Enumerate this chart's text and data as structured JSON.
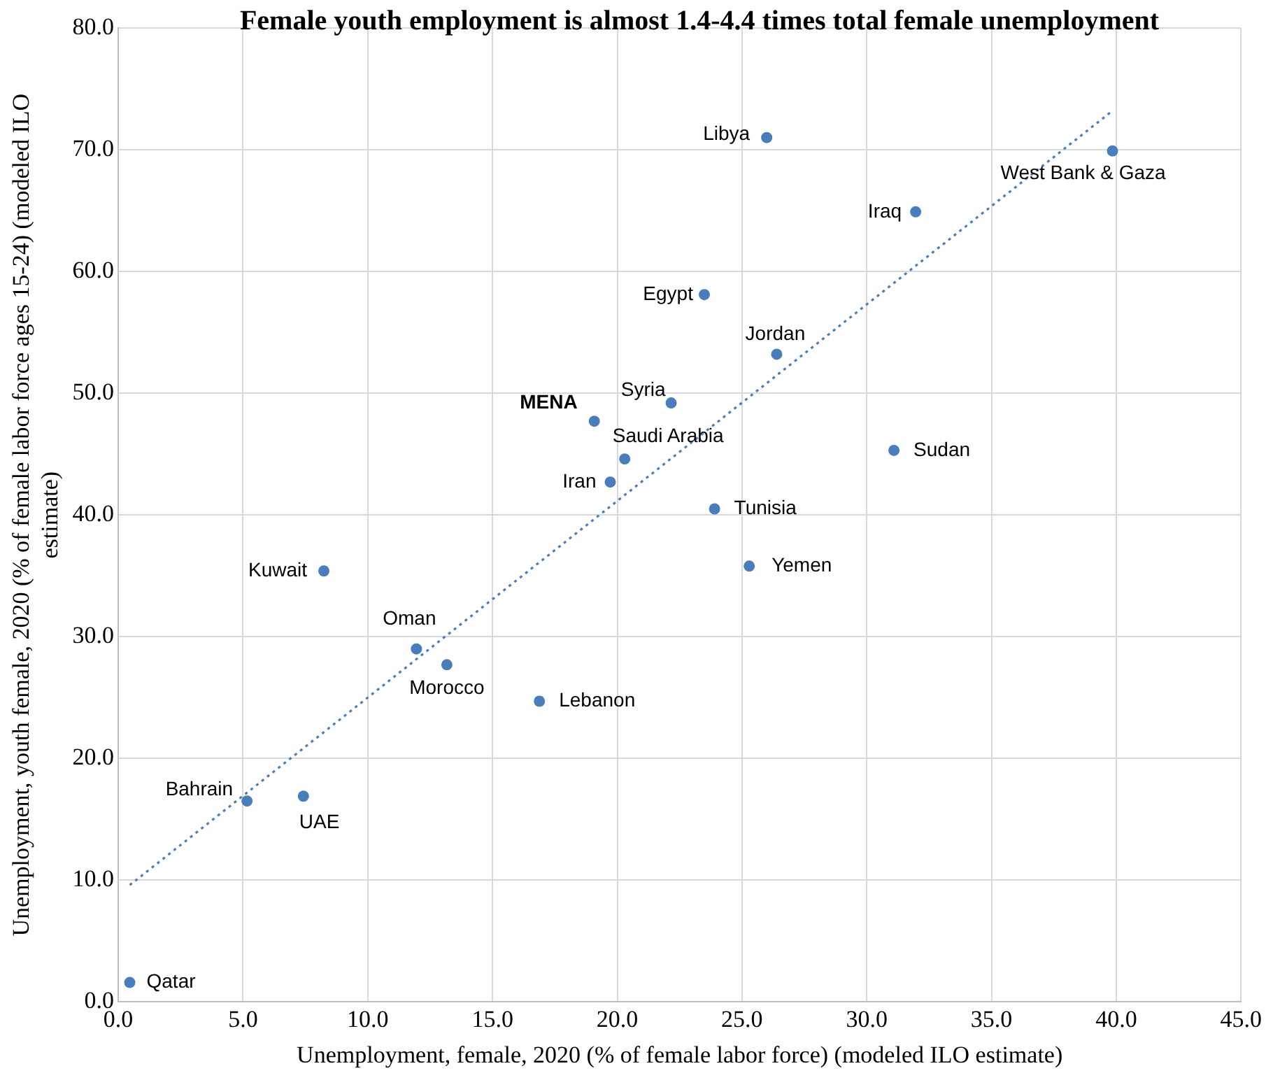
{
  "chart_data": {
    "type": "scatter",
    "title": "Female youth employment is almost 1.4-4.4 times total female unemployment",
    "xlabel": "Unemployment, female, 2020 (% of female labor force) (modeled ILO estimate)",
    "ylabel": "Unemployment, youth female, 2020 (% of female labor force ages 15-24) (modeled ILO estimate)",
    "x": [
      0.46,
      5.16,
      7.42,
      8.24,
      11.95,
      13.17,
      16.88,
      19.72,
      19.08,
      20.3,
      22.16,
      23.49,
      23.9,
      25.29,
      25.99,
      26.39,
      31.09,
      31.96,
      39.85
    ],
    "series": [
      {
        "color": "#4a7ebb",
        "values": [
          1.6,
          16.5,
          16.9,
          35.4,
          29.0,
          27.7,
          24.7,
          42.7,
          47.7,
          44.6,
          49.2,
          58.1,
          40.5,
          35.8,
          71.0,
          53.2,
          45.3,
          64.9,
          69.9
        ]
      },
      {
        "type": "line",
        "color": "#4a7ebb",
        "x": [
          0.46,
          39.85
        ],
        "values": [
          9.6,
          73.2
        ],
        "line_style": "dotted",
        "marker": "none"
      }
    ],
    "annotations": [
      {
        "text": "Qatar",
        "x": 0.46,
        "y": 1.6
      },
      {
        "text": "Bahrain",
        "x": 5.16,
        "y": 16.5
      },
      {
        "text": "UAE",
        "x": 7.42,
        "y": 16.9
      },
      {
        "text": "Kuwait",
        "x": 8.24,
        "y": 35.4
      },
      {
        "text": "Oman",
        "x": 11.95,
        "y": 29.0
      },
      {
        "text": "Morocco",
        "x": 13.17,
        "y": 27.7
      },
      {
        "text": "Lebanon",
        "x": 16.88,
        "y": 24.7
      },
      {
        "text": "Iran",
        "x": 19.72,
        "y": 42.7
      },
      {
        "text": "MENA",
        "x": 19.08,
        "y": 47.7
      },
      {
        "text": "Saudi Arabia",
        "x": 20.3,
        "y": 44.6
      },
      {
        "text": "Syria",
        "x": 22.16,
        "y": 49.2
      },
      {
        "text": "Egypt",
        "x": 23.49,
        "y": 58.1
      },
      {
        "text": "Tunisia",
        "x": 23.9,
        "y": 40.5
      },
      {
        "text": "Yemen",
        "x": 25.29,
        "y": 35.8
      },
      {
        "text": "Libya",
        "x": 25.99,
        "y": 71.0
      },
      {
        "text": "Jordan",
        "x": 26.39,
        "y": 53.2
      },
      {
        "text": "Sudan",
        "x": 31.09,
        "y": 45.3
      },
      {
        "text": "Iraq",
        "x": 31.96,
        "y": 64.9
      },
      {
        "text": "West Bank & Gaza",
        "x": 39.85,
        "y": 69.9
      }
    ],
    "xlim": [
      0,
      45
    ],
    "xticks": [
      {
        "value": 0,
        "label": "0.0"
      },
      {
        "value": 5,
        "label": "5.0"
      },
      {
        "value": 10,
        "label": "10.0"
      },
      {
        "value": 15,
        "label": "15.0"
      },
      {
        "value": 20,
        "label": "20.0"
      },
      {
        "value": 25,
        "label": "25.0"
      },
      {
        "value": 30,
        "label": "30.0"
      },
      {
        "value": 35,
        "label": "35.0"
      },
      {
        "value": 40,
        "label": "40.0"
      },
      {
        "value": 45,
        "label": "45.0"
      }
    ],
    "ylim": [
      0,
      80
    ],
    "yticks": [
      {
        "value": 0,
        "label": "0.0"
      },
      {
        "value": 10,
        "label": "10.0"
      },
      {
        "value": 20,
        "label": "20.0"
      },
      {
        "value": 30,
        "label": "30.0"
      },
      {
        "value": 40,
        "label": "40.0"
      },
      {
        "value": 50,
        "label": "50.0"
      },
      {
        "value": 60,
        "label": "60.0"
      },
      {
        "value": 70,
        "label": "70.0"
      },
      {
        "value": 80,
        "label": "80.0"
      }
    ],
    "grid": true,
    "legend": false,
    "marker": "circle"
  }
}
